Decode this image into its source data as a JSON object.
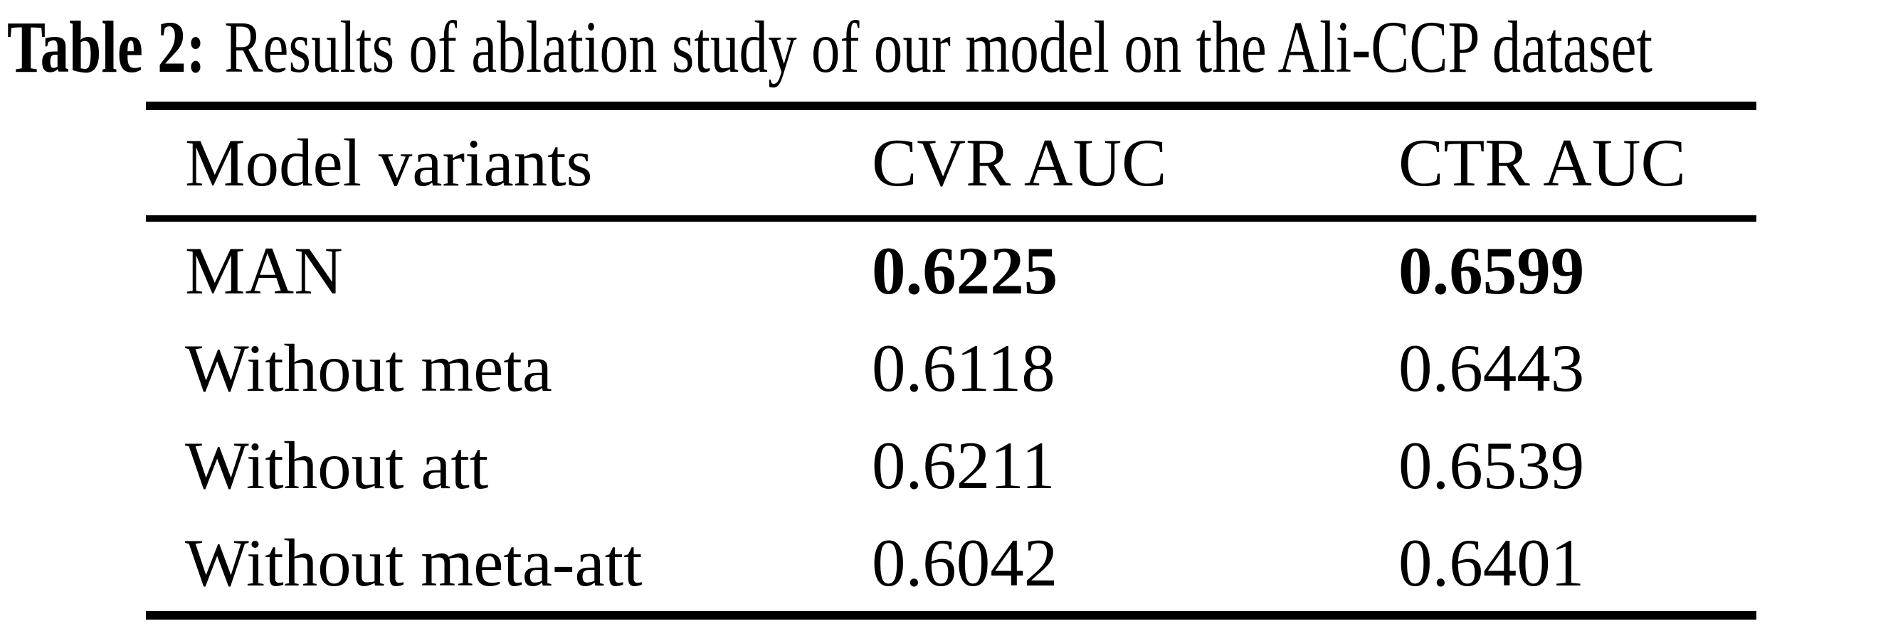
{
  "caption": {
    "label": "Table 2:",
    "text": "Results of ablation study of our model on the Ali-CCP dataset"
  },
  "table": {
    "columns": [
      "Model variants",
      "CVR AUC",
      "CTR AUC"
    ],
    "rows": [
      {
        "variant": "MAN",
        "cvr_auc": "0.6225",
        "ctr_auc": "0.6599"
      },
      {
        "variant": "Without meta",
        "cvr_auc": "0.6118",
        "ctr_auc": "0.6443"
      },
      {
        "variant": "Without att",
        "cvr_auc": "0.6211",
        "ctr_auc": "0.6539"
      },
      {
        "variant": "Without meta-att",
        "cvr_auc": "0.6042",
        "ctr_auc": "0.6401"
      }
    ]
  },
  "colors": {
    "text": "#000000",
    "background": "#ffffff",
    "rule": "#000000"
  }
}
